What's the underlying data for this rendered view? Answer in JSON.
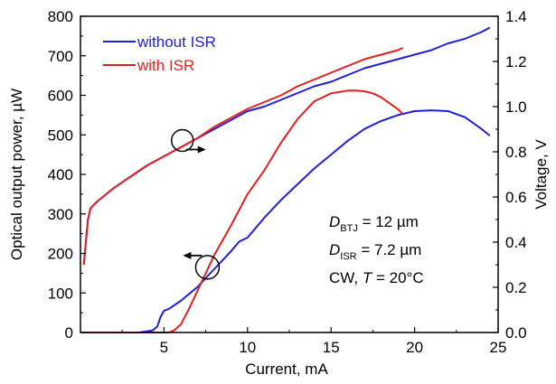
{
  "chart_data": {
    "type": "line",
    "xlabel": "Current, mA",
    "ylabel_left": "Optical output power, µW",
    "ylabel_right": "Voltage, V",
    "xlim": [
      0,
      25
    ],
    "ylim_left": [
      0,
      800
    ],
    "ylim_right": [
      0,
      1.4
    ],
    "xticks": [
      5,
      10,
      15,
      20,
      25
    ],
    "yticks_left": [
      0,
      100,
      200,
      300,
      400,
      500,
      600,
      700,
      800
    ],
    "yticks_right": [
      0.0,
      0.2,
      0.4,
      0.6,
      0.8,
      1.0,
      1.2,
      1.4
    ],
    "xtick_labels": [
      "5",
      "10",
      "15",
      "20",
      "25"
    ],
    "ytick_labels_left": [
      "0",
      "100",
      "200",
      "300",
      "400",
      "500",
      "600",
      "700",
      "800"
    ],
    "ytick_labels_right": [
      "0.0",
      "0.2",
      "0.4",
      "0.6",
      "0.8",
      "1.0",
      "1.2",
      "1.4"
    ],
    "legend_position": "top-left",
    "series": [
      {
        "name": "without ISR",
        "color": "#1f1fd6",
        "axis": "left",
        "kind": "optical output power",
        "x": [
          0,
          3.5,
          4.3,
          4.6,
          4.8,
          5.0,
          5.3,
          6.0,
          7.0,
          8.0,
          9.0,
          9.5,
          10.0,
          11.0,
          12.0,
          13.0,
          14.0,
          15.0,
          16.0,
          17.0,
          18.0,
          19.0,
          20.0,
          21.0,
          22.0,
          23.0,
          23.5,
          24.0,
          24.5
        ],
        "y": [
          0,
          0,
          5,
          15,
          40,
          55,
          60,
          80,
          115,
          160,
          205,
          230,
          240,
          290,
          335,
          375,
          415,
          450,
          485,
          515,
          535,
          550,
          560,
          562,
          560,
          545,
          530,
          515,
          498
        ]
      },
      {
        "name": "with ISR",
        "color": "#e02020",
        "axis": "left",
        "kind": "optical output power",
        "x": [
          0,
          5.3,
          5.6,
          6.0,
          6.5,
          7.0,
          7.5,
          8.0,
          9.0,
          10.0,
          11.0,
          12.0,
          13.0,
          14.0,
          15.0,
          16.0,
          16.5,
          17.0,
          17.5,
          18.0,
          18.5,
          19.0,
          19.3
        ],
        "y": [
          0,
          0,
          5,
          20,
          60,
          105,
          150,
          195,
          270,
          350,
          410,
          480,
          540,
          585,
          605,
          612,
          612,
          610,
          605,
          595,
          580,
          565,
          553
        ]
      },
      {
        "name": "without ISR",
        "color": "#1f1fd6",
        "axis": "right",
        "kind": "voltage",
        "x": [
          0.2,
          0.45,
          0.6,
          1,
          2,
          3,
          4,
          5,
          6,
          7,
          8,
          9,
          10,
          11,
          12,
          13,
          14,
          15,
          16,
          17,
          18,
          19,
          20,
          21,
          22,
          23,
          24,
          24.5
        ],
        "y": [
          0.3,
          0.5,
          0.55,
          0.58,
          0.64,
          0.69,
          0.74,
          0.78,
          0.82,
          0.86,
          0.9,
          0.94,
          0.98,
          1.0,
          1.03,
          1.06,
          1.09,
          1.11,
          1.14,
          1.17,
          1.19,
          1.21,
          1.23,
          1.25,
          1.28,
          1.3,
          1.33,
          1.35
        ]
      },
      {
        "name": "with ISR",
        "color": "#e02020",
        "axis": "right",
        "kind": "voltage",
        "x": [
          0.2,
          0.45,
          0.6,
          1,
          2,
          3,
          4,
          5,
          6,
          7,
          8,
          9,
          10,
          11,
          12,
          13,
          14,
          15,
          16,
          17,
          18,
          19,
          19.3
        ],
        "y": [
          0.3,
          0.5,
          0.55,
          0.58,
          0.64,
          0.69,
          0.74,
          0.78,
          0.82,
          0.86,
          0.91,
          0.95,
          0.99,
          1.02,
          1.05,
          1.09,
          1.12,
          1.15,
          1.18,
          1.21,
          1.23,
          1.25,
          1.26
        ]
      }
    ],
    "annotation": {
      "line1_var": "D",
      "line1_sub": "BTJ",
      "line1_rest": " = 12 µm",
      "line2_var": "D",
      "line2_sub": "ISR",
      "line2_rest": " = 7.2 µm",
      "line3_pre": "CW, ",
      "line3_var": "T",
      "line3_rest": " = 20°C"
    },
    "markers": [
      {
        "shape": "circle",
        "points_to": "right axis",
        "x": 6.1,
        "axis": "right",
        "y": 0.85
      },
      {
        "shape": "circle",
        "points_to": "left axis",
        "x": 7.6,
        "axis": "left",
        "y": 165
      }
    ]
  }
}
